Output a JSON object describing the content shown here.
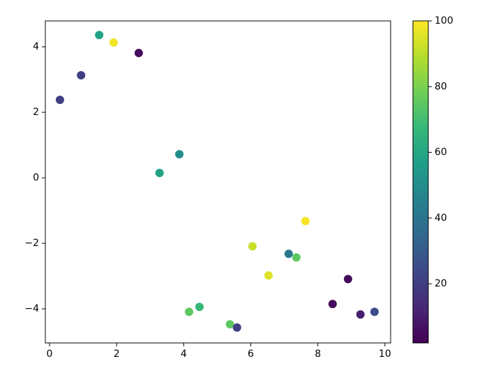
{
  "chart_data": {
    "type": "scatter",
    "x": [
      0.31,
      0.94,
      1.48,
      1.91,
      2.66,
      3.28,
      3.87,
      4.16,
      4.47,
      5.38,
      5.59,
      6.05,
      6.53,
      7.13,
      7.36,
      7.63,
      8.44,
      8.9,
      9.27,
      9.69
    ],
    "y": [
      2.38,
      3.13,
      4.36,
      4.13,
      3.81,
      0.15,
      0.72,
      -4.09,
      -3.94,
      -4.47,
      -4.57,
      -2.09,
      -2.98,
      -2.32,
      -2.43,
      -1.32,
      -3.85,
      -3.09,
      -4.17,
      -4.09
    ],
    "c": [
      20,
      20,
      58,
      98,
      5,
      58,
      50,
      75,
      68,
      75,
      20,
      92,
      95,
      42,
      75,
      99,
      5,
      5,
      10,
      25
    ],
    "colormap": "viridis",
    "clim": [
      2,
      100
    ],
    "cticks": [
      20,
      40,
      60,
      80,
      100
    ],
    "xlim": [
      -0.125,
      10.17
    ],
    "ylim": [
      -5.04,
      4.79
    ],
    "xticks": [
      0,
      2,
      4,
      6,
      8,
      10
    ],
    "yticks": [
      {
        "value": -4,
        "label": "−4"
      },
      {
        "value": -2,
        "label": "−2"
      },
      0,
      2,
      4
    ],
    "grid": false
  }
}
